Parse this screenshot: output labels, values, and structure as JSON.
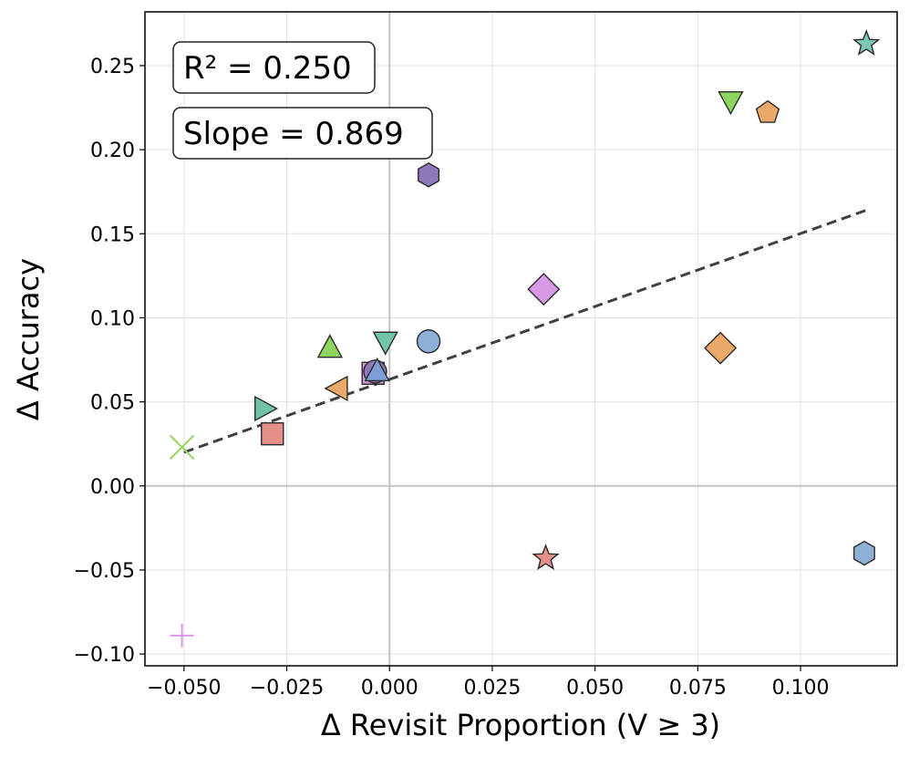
{
  "chart_data": {
    "type": "scatter",
    "title": "",
    "xlabel": "Δ Revisit Proportion (V ≥ 3)",
    "ylabel": "Δ Accuracy",
    "xlim": [
      -0.0595,
      0.1235
    ],
    "ylim": [
      -0.107,
      0.282
    ],
    "grid": true,
    "xticks": [
      -0.05,
      -0.025,
      0.0,
      0.025,
      0.05,
      0.075,
      0.1
    ],
    "xtick_labels": [
      "−0.050",
      "−0.025",
      "0.000",
      "0.025",
      "0.050",
      "0.075",
      "0.100"
    ],
    "yticks": [
      -0.1,
      -0.05,
      0.0,
      0.05,
      0.1,
      0.15,
      0.2,
      0.25
    ],
    "ytick_labels": [
      "−0.10",
      "−0.05",
      "0.00",
      "0.05",
      "0.10",
      "0.15",
      "0.20",
      "0.25"
    ],
    "annotations": [
      {
        "text": "R² = 0.250"
      },
      {
        "text": "Slope = 0.869"
      }
    ],
    "fit_line": {
      "slope": 0.869,
      "x_start": -0.05,
      "x_end": 0.116,
      "y_start": 0.02,
      "y_end": 0.164,
      "color": "#404040"
    },
    "points": [
      {
        "x": 0.116,
        "y": 0.263,
        "marker": "star",
        "color": "#7fc7b3"
      },
      {
        "x": 0.083,
        "y": 0.229,
        "marker": "triangle-down",
        "color": "#8fd45e"
      },
      {
        "x": 0.092,
        "y": 0.222,
        "marker": "pentagon",
        "color": "#eba868"
      },
      {
        "x": 0.0095,
        "y": 0.185,
        "marker": "hexagon",
        "color": "#8f79bd"
      },
      {
        "x": 0.0375,
        "y": 0.117,
        "marker": "diamond",
        "color": "#d89ae6"
      },
      {
        "x": 0.0095,
        "y": 0.086,
        "marker": "circle",
        "color": "#8fb0d6"
      },
      {
        "x": -0.001,
        "y": 0.086,
        "marker": "triangle-down",
        "color": "#71c4a6"
      },
      {
        "x": 0.0805,
        "y": 0.082,
        "marker": "diamond",
        "color": "#eba868"
      },
      {
        "x": -0.0145,
        "y": 0.082,
        "marker": "triangle-up",
        "color": "#8fd45e"
      },
      {
        "x": -0.004,
        "y": 0.067,
        "marker": "square",
        "color": "#d49ad8"
      },
      {
        "x": -0.0035,
        "y": 0.068,
        "marker": "circle",
        "color": "#8f79bd"
      },
      {
        "x": -0.003,
        "y": 0.068,
        "marker": "triangle-up",
        "color": "#7f9ed6"
      },
      {
        "x": -0.0125,
        "y": 0.058,
        "marker": "triangle-left",
        "color": "#eba868"
      },
      {
        "x": -0.0305,
        "y": 0.046,
        "marker": "triangle-right",
        "color": "#71c4a6"
      },
      {
        "x": -0.0285,
        "y": 0.031,
        "marker": "square",
        "color": "#e48f88"
      },
      {
        "x": -0.0505,
        "y": 0.023,
        "marker": "x",
        "color": "#9ed46a"
      },
      {
        "x": 0.038,
        "y": -0.043,
        "marker": "star",
        "color": "#e48f88"
      },
      {
        "x": 0.1155,
        "y": -0.04,
        "marker": "hexagon",
        "color": "#8fb0d6"
      },
      {
        "x": -0.0505,
        "y": -0.089,
        "marker": "plus",
        "color": "#d89ae6"
      }
    ]
  }
}
